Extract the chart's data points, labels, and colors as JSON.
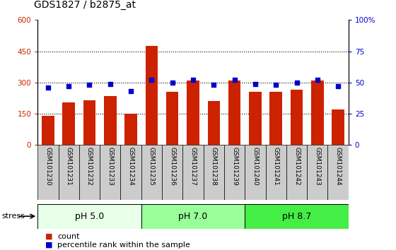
{
  "title": "GDS1827 / b2875_at",
  "categories": [
    "GSM101230",
    "GSM101231",
    "GSM101232",
    "GSM101233",
    "GSM101234",
    "GSM101235",
    "GSM101236",
    "GSM101237",
    "GSM101238",
    "GSM101239",
    "GSM101240",
    "GSM101241",
    "GSM101242",
    "GSM101243",
    "GSM101244"
  ],
  "counts": [
    140,
    205,
    215,
    235,
    150,
    475,
    255,
    310,
    210,
    310,
    255,
    255,
    265,
    310,
    170
  ],
  "percentile_ranks": [
    46,
    47,
    48,
    49,
    43,
    52,
    50,
    52,
    48,
    52,
    49,
    48,
    50,
    52,
    47
  ],
  "groups": [
    {
      "label": "pH 5.0",
      "start": 0,
      "end": 5,
      "color": "#e8ffe8"
    },
    {
      "label": "pH 7.0",
      "start": 5,
      "end": 10,
      "color": "#99ff99"
    },
    {
      "label": "pH 8.7",
      "start": 10,
      "end": 15,
      "color": "#44ee44"
    }
  ],
  "stress_label": "stress",
  "ylim_left": [
    0,
    600
  ],
  "ylim_right": [
    0,
    100
  ],
  "yticks_left": [
    0,
    150,
    300,
    450,
    600
  ],
  "yticks_right": [
    0,
    25,
    50,
    75,
    100
  ],
  "bar_color": "#cc2200",
  "dot_color": "#0000cc",
  "tick_area_bg": "#cccccc",
  "legend_count_label": "count",
  "legend_pct_label": "percentile rank within the sample"
}
